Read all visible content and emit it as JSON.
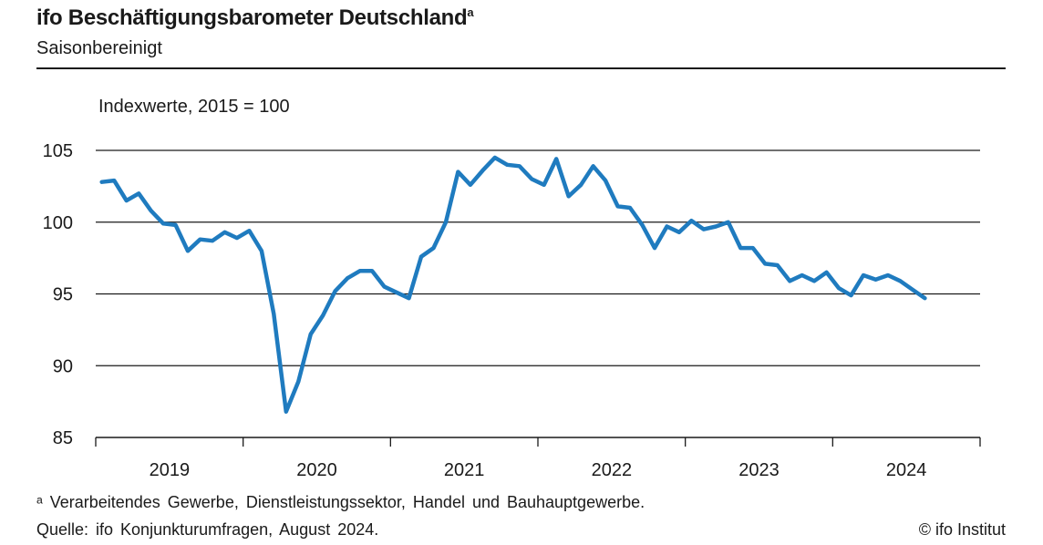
{
  "header": {
    "title": "ifo Beschäftigungsbarometer Deutschland",
    "title_marker": "a",
    "subtitle": "Saisonbereinigt"
  },
  "footer": {
    "note": "ᵃ Verarbeitendes Gewerbe, Dienstleistungssektor, Handel und Bauhauptgewerbe.",
    "source": "Quelle: ifo Konjunkturumfragen, August 2024.",
    "copyright": "© ifo Institut"
  },
  "colors": {
    "line": "#1f7bbf",
    "grid": "#1a1a1a",
    "text": "#1a1a1a"
  },
  "chart_data": {
    "type": "line",
    "title": "ifo Beschäftigungsbarometer Deutschland",
    "ylabel": "Indexwerte, 2015 = 100",
    "ylim": [
      85,
      105
    ],
    "yticks": [
      85,
      90,
      95,
      100,
      105
    ],
    "grid": "horizontal",
    "x_tick_labels": [
      "2019",
      "2020",
      "2021",
      "2022",
      "2023",
      "2024"
    ],
    "x_start": "2019-01",
    "x_end": "2024-08",
    "series": [
      {
        "name": "",
        "values": [
          102.8,
          102.9,
          101.5,
          102.0,
          100.8,
          99.9,
          99.8,
          98.0,
          98.8,
          98.7,
          99.3,
          98.9,
          99.4,
          98.0,
          93.6,
          86.8,
          88.9,
          92.2,
          93.5,
          95.2,
          96.1,
          96.6,
          96.6,
          95.5,
          95.1,
          94.7,
          97.6,
          98.2,
          100.0,
          103.5,
          102.6,
          103.6,
          104.5,
          104.0,
          103.9,
          103.0,
          102.6,
          104.4,
          101.8,
          102.6,
          103.9,
          102.9,
          101.1,
          101.0,
          99.8,
          98.2,
          99.7,
          99.3,
          100.1,
          99.5,
          99.7,
          100.0,
          98.2,
          98.2,
          97.1,
          97.0,
          95.9,
          96.3,
          95.9,
          96.5,
          95.4,
          94.9,
          96.3,
          96.0,
          96.3,
          95.9,
          95.3,
          94.7
        ]
      }
    ]
  }
}
